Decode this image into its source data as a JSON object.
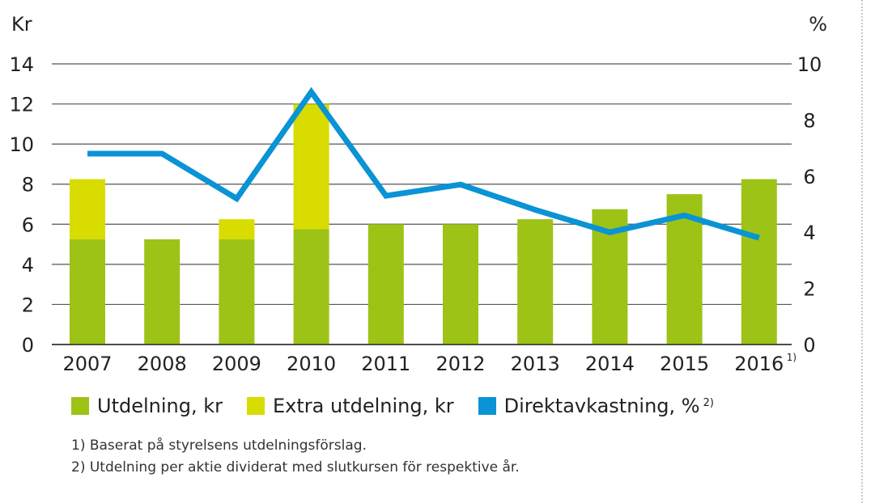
{
  "chart_data": {
    "type": "bar+line",
    "left_axis_label": "Kr",
    "right_axis_label": "%",
    "left_ylim": [
      0,
      14
    ],
    "left_ticks": [
      0,
      2,
      4,
      6,
      8,
      10,
      12,
      14
    ],
    "right_ylim": [
      0,
      10
    ],
    "right_ticks": [
      0,
      2,
      4,
      6,
      8,
      10
    ],
    "categories": [
      "2007",
      "2008",
      "2009",
      "2010",
      "2011",
      "2012",
      "2013",
      "2014",
      "2015",
      "2016"
    ],
    "category_footnotes": {
      "2016": "1)"
    },
    "series": [
      {
        "name": "Utdelning, kr",
        "kind": "bar",
        "axis": "left",
        "color": "#9dc317",
        "values": [
          5.25,
          5.25,
          5.25,
          5.75,
          6.0,
          6.0,
          6.25,
          6.75,
          7.5,
          8.25
        ]
      },
      {
        "name": "Extra utdelning, kr",
        "kind": "bar-stacked",
        "axis": "left",
        "color": "#d8dc00",
        "values": [
          3.0,
          0,
          1.0,
          6.25,
          0,
          0,
          0,
          0,
          0,
          0
        ]
      },
      {
        "name": "Direktavkastning, %",
        "kind": "line",
        "axis": "right",
        "color": "#0a93d5",
        "values": [
          6.8,
          6.8,
          5.2,
          9.0,
          5.3,
          5.7,
          4.8,
          4.0,
          4.6,
          3.8
        ]
      }
    ]
  },
  "legend": [
    {
      "label": "Utdelning, kr",
      "color": "#9dc317",
      "footnote": ""
    },
    {
      "label": "Extra utdelning, kr",
      "color": "#d8dc00",
      "footnote": ""
    },
    {
      "label": "Direktavkastning, %",
      "color": "#0a93d5",
      "footnote": "2)"
    }
  ],
  "footnotes": [
    "1) Baserat på styrelsens utdelningsförslag.",
    "2) Utdelning per aktie dividerat med slutkursen för respektive år."
  ]
}
